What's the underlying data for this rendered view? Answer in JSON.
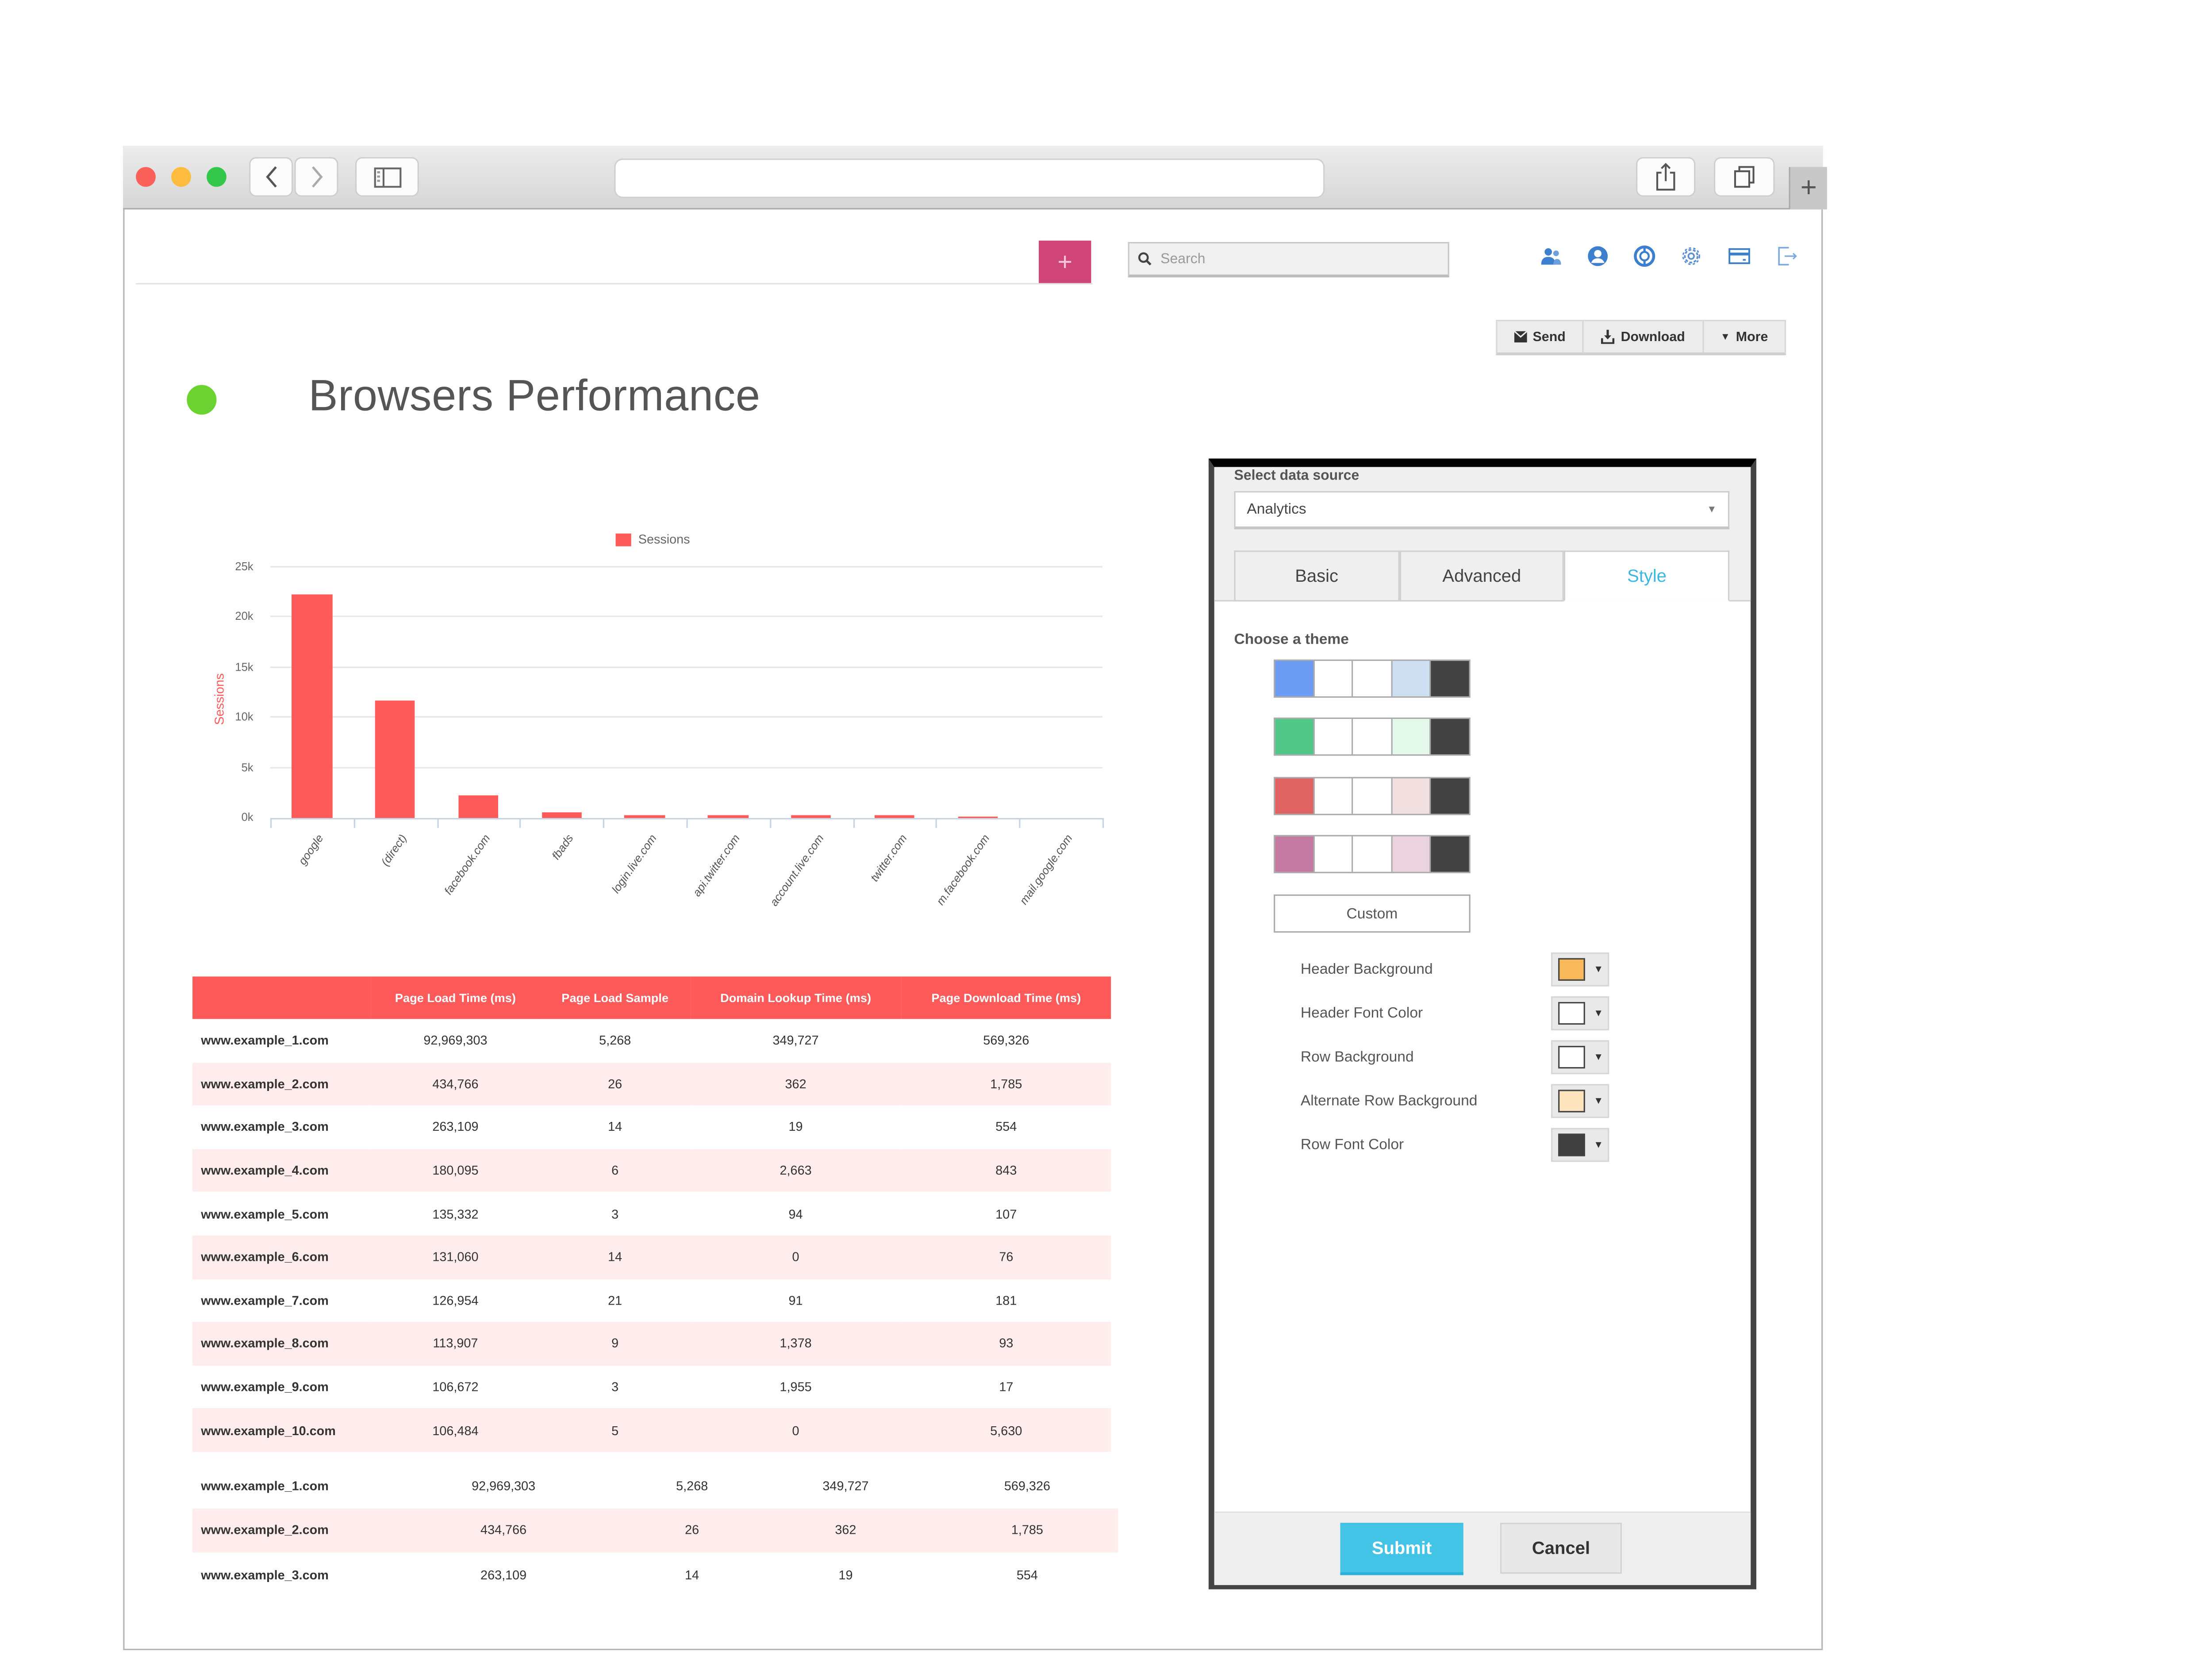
{
  "browser": {
    "url": "",
    "traffic_lights": {
      "close": "#fc605b",
      "minimize": "#fdbc40",
      "maximize": "#34c84a"
    },
    "back_icon": "chevron-left",
    "forward_icon": "chevron-right",
    "sidebar_icon": "sidebar",
    "share_icon": "share",
    "tabs_icon": "tabs",
    "new_tab_label": "+"
  },
  "header": {
    "add_button_label": "+",
    "add_button_color": "#d04577",
    "search": {
      "placeholder": "Search",
      "value": ""
    },
    "icons": [
      "users-icon",
      "user-profile-icon",
      "help-lifebuoy-icon",
      "gear-icon",
      "billing-card-icon",
      "logout-icon"
    ],
    "icon_color": "#3d7fcf"
  },
  "actions": {
    "send_label": "Send",
    "download_label": "Download",
    "more_label": "More"
  },
  "page": {
    "title": "Browsers Performance",
    "status_color": "#6cd232"
  },
  "chart_data": {
    "type": "bar",
    "title": "",
    "legend": [
      "Sessions"
    ],
    "legend_position": "top",
    "xlabel": "",
    "ylabel": "Sessions",
    "ylim": [
      0,
      25000
    ],
    "yticks": [
      "0k",
      "5k",
      "10k",
      "15k",
      "20k",
      "25k"
    ],
    "grid": true,
    "color": "#ff5a5a",
    "categories": [
      "google",
      "(direct)",
      "facebook.com",
      "fbads",
      "login.live.com",
      "api.twitter.com",
      "account.live.com",
      "twitter.com",
      "m.facebook.com",
      "mail.google.com"
    ],
    "series": [
      {
        "name": "Sessions",
        "values": [
          22200,
          11600,
          2200,
          600,
          350,
          250,
          250,
          250,
          100,
          0
        ]
      }
    ]
  },
  "table": {
    "header_color": "#ff5a5a",
    "alt_row_color": "#ffecec",
    "columns": [
      "",
      "Page Load Time (ms)",
      "Page Load Sample",
      "Domain Lookup Time (ms)",
      "Page Download Time (ms)"
    ],
    "rows": [
      [
        "www.example_1.com",
        "92,969,303",
        "5,268",
        "349,727",
        "569,326"
      ],
      [
        "www.example_2.com",
        "434,766",
        "26",
        "362",
        "1,785"
      ],
      [
        "www.example_3.com",
        "263,109",
        "14",
        "19",
        "554"
      ],
      [
        "www.example_4.com",
        "180,095",
        "6",
        "2,663",
        "843"
      ],
      [
        "www.example_5.com",
        "135,332",
        "3",
        "94",
        "107"
      ],
      [
        "www.example_6.com",
        "131,060",
        "14",
        "0",
        "76"
      ],
      [
        "www.example_7.com",
        "126,954",
        "21",
        "91",
        "181"
      ],
      [
        "www.example_8.com",
        "113,907",
        "9",
        "1,378",
        "93"
      ],
      [
        "www.example_9.com",
        "106,672",
        "3",
        "1,955",
        "17"
      ],
      [
        "www.example_10.com",
        "106,484",
        "5",
        "0",
        "5,630"
      ]
    ],
    "extra_rows": [
      [
        "www.example_1.com",
        "92,969,303",
        "5,268",
        "349,727",
        "569,326"
      ],
      [
        "www.example_2.com",
        "434,766",
        "26",
        "362",
        "1,785"
      ],
      [
        "www.example_3.com",
        "263,109",
        "14",
        "19",
        "554"
      ]
    ]
  },
  "panel": {
    "data_source_label": "Select data source",
    "data_source_value": "Analytics",
    "tabs": [
      {
        "label": "Basic",
        "active": false
      },
      {
        "label": "Advanced",
        "active": false
      },
      {
        "label": "Style",
        "active": true
      }
    ],
    "theme_label": "Choose a theme",
    "themes": [
      {
        "colors": [
          "#6b9cf2",
          "#ffffff",
          "#ffffff",
          "#cddff0",
          "#424242"
        ]
      },
      {
        "colors": [
          "#52c888",
          "#ffffff",
          "#ffffff",
          "#e3f8ea",
          "#424242"
        ]
      },
      {
        "colors": [
          "#e06464",
          "#ffffff",
          "#ffffff",
          "#f2e0e0",
          "#424242"
        ]
      },
      {
        "colors": [
          "#c47aa0",
          "#ffffff",
          "#ffffff",
          "#ead3de",
          "#424242"
        ]
      }
    ],
    "custom_label": "Custom",
    "options": [
      {
        "label": "Header Background",
        "color": "#f9b95a"
      },
      {
        "label": "Header Font Color",
        "color": "#ffffff"
      },
      {
        "label": "Row Background",
        "color": "#ffffff"
      },
      {
        "label": "Alternate Row Background",
        "color": "#ffe5bd"
      },
      {
        "label": "Row Font Color",
        "color": "#404040"
      }
    ],
    "submit_label": "Submit",
    "cancel_label": "Cancel"
  }
}
